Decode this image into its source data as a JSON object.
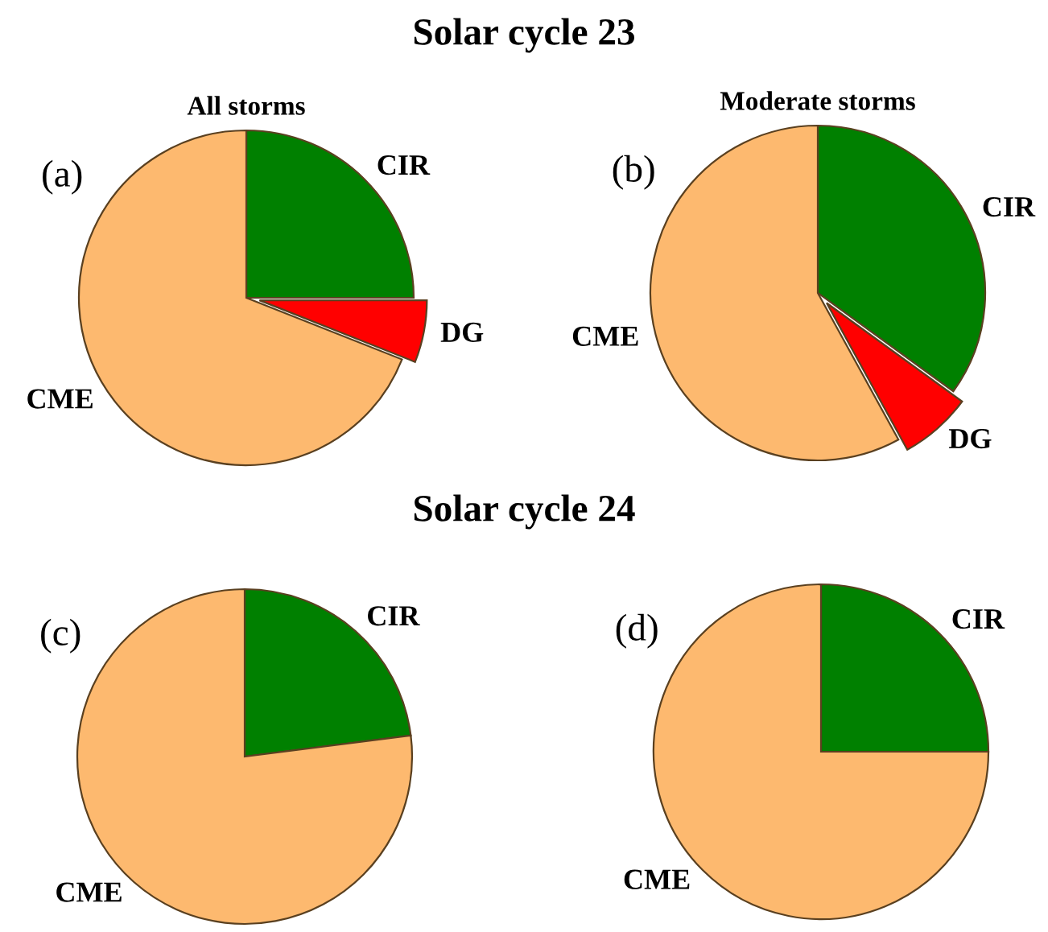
{
  "chart_data": [
    {
      "type": "pie",
      "title": "Solar cycle 23",
      "subtitle": "All storms",
      "annotations": [
        "(a)"
      ],
      "categories": [
        "CIR",
        "DG",
        "CME"
      ],
      "values": [
        25,
        6,
        69
      ],
      "colors": [
        "#008000",
        "#ff0000",
        "#fdb96f"
      ]
    },
    {
      "type": "pie",
      "subtitle": "Moderate storms",
      "annotations": [
        "(b)"
      ],
      "categories": [
        "CIR",
        "DG",
        "CME"
      ],
      "values": [
        35,
        7,
        58
      ],
      "colors": [
        "#008000",
        "#ff0000",
        "#fdb96f"
      ]
    },
    {
      "type": "pie",
      "title": "Solar cycle 24",
      "annotations": [
        "(c)"
      ],
      "categories": [
        "CIR",
        "CME"
      ],
      "values": [
        23,
        77
      ],
      "colors": [
        "#008000",
        "#fdb96f"
      ]
    },
    {
      "type": "pie",
      "annotations": [
        "(d)"
      ],
      "categories": [
        "CIR",
        "CME"
      ],
      "values": [
        25,
        75
      ],
      "colors": [
        "#008000",
        "#fdb96f"
      ]
    }
  ]
}
